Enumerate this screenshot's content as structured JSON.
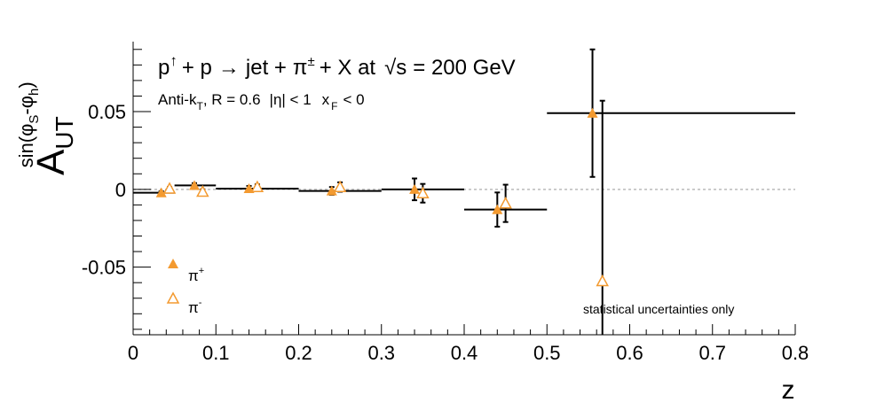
{
  "chart_data": {
    "type": "scatter",
    "title": {
      "p": "p",
      "arrow": "↑",
      "plus1": "+ p",
      "to": "→",
      "jet": "jet +",
      "pi": "π",
      "pm": "±",
      "rest": "+ X at",
      "sqrt": "√s",
      "energy": "= 200 GeV"
    },
    "subtitle": {
      "algo": "Anti-k",
      "algo_sub": "T",
      "radius": ", R = 0.6",
      "eta": "|η| < 1",
      "xf": "x",
      "xf_sub": "F",
      "xf_cut": "< 0"
    },
    "xlabel": "z",
    "ylabel": {
      "main": "A",
      "sub": "UT",
      "sup_open": "sin(φ",
      "sup_s": "S",
      "sup_mid": "-φ",
      "sup_h": "h",
      "sup_close": ")"
    },
    "xlim": [
      0,
      0.8
    ],
    "ylim": [
      -0.0935,
      0.095
    ],
    "x_ticks": [
      {
        "v": 0,
        "label": "0"
      },
      {
        "v": 0.1,
        "label": "0.1"
      },
      {
        "v": 0.2,
        "label": "0.2"
      },
      {
        "v": 0.3,
        "label": "0.3"
      },
      {
        "v": 0.4,
        "label": "0.4"
      },
      {
        "v": 0.5,
        "label": "0.5"
      },
      {
        "v": 0.6,
        "label": "0.6"
      },
      {
        "v": 0.7,
        "label": "0.7"
      },
      {
        "v": 0.8,
        "label": "0.8"
      }
    ],
    "y_ticks": [
      {
        "v": 0.05,
        "label": "0.05"
      },
      {
        "v": 0,
        "label": "0"
      },
      {
        "v": -0.05,
        "label": "-0.05"
      }
    ],
    "annotation": "statistical uncertainties only",
    "annotation_color": "#e00000",
    "marker_color": "#f39a30",
    "legend_position": "bottom-left",
    "series": [
      {
        "name": "π⁺",
        "label": "π",
        "label_sup": "+",
        "marker": "filled-triangle",
        "points": [
          {
            "x": 0.034,
            "y": -0.0022,
            "xlo": 0.0,
            "xhi": 0.05,
            "err": 0.001
          },
          {
            "x": 0.074,
            "y": 0.0025,
            "xlo": 0.05,
            "xhi": 0.1,
            "err": 0.0015
          },
          {
            "x": 0.14,
            "y": 0.0005,
            "xlo": 0.1,
            "xhi": 0.2,
            "err": 0.0017
          },
          {
            "x": 0.24,
            "y": -0.001,
            "xlo": 0.2,
            "xhi": 0.3,
            "err": 0.0025
          },
          {
            "x": 0.34,
            "y": 0.0,
            "xlo": 0.3,
            "xhi": 0.4,
            "err": 0.007
          },
          {
            "x": 0.44,
            "y": -0.013,
            "xlo": 0.4,
            "xhi": 0.5,
            "err": 0.011
          },
          {
            "x": 0.555,
            "y": 0.049,
            "xlo": 0.5,
            "xhi": 0.8,
            "err": 0.041
          }
        ]
      },
      {
        "name": "π⁻",
        "label": "π",
        "label_sup": "-",
        "marker": "open-triangle",
        "points": [
          {
            "x": 0.044,
            "y": 0.0005,
            "err": 0.001
          },
          {
            "x": 0.084,
            "y": -0.0015,
            "err": 0.0015
          },
          {
            "x": 0.15,
            "y": 0.0015,
            "err": 0.0017
          },
          {
            "x": 0.25,
            "y": 0.0015,
            "err": 0.003
          },
          {
            "x": 0.35,
            "y": -0.0025,
            "err": 0.006
          },
          {
            "x": 0.45,
            "y": -0.009,
            "err": 0.012
          },
          {
            "x": 0.567,
            "y": -0.059,
            "err": 0.116
          }
        ]
      }
    ]
  }
}
